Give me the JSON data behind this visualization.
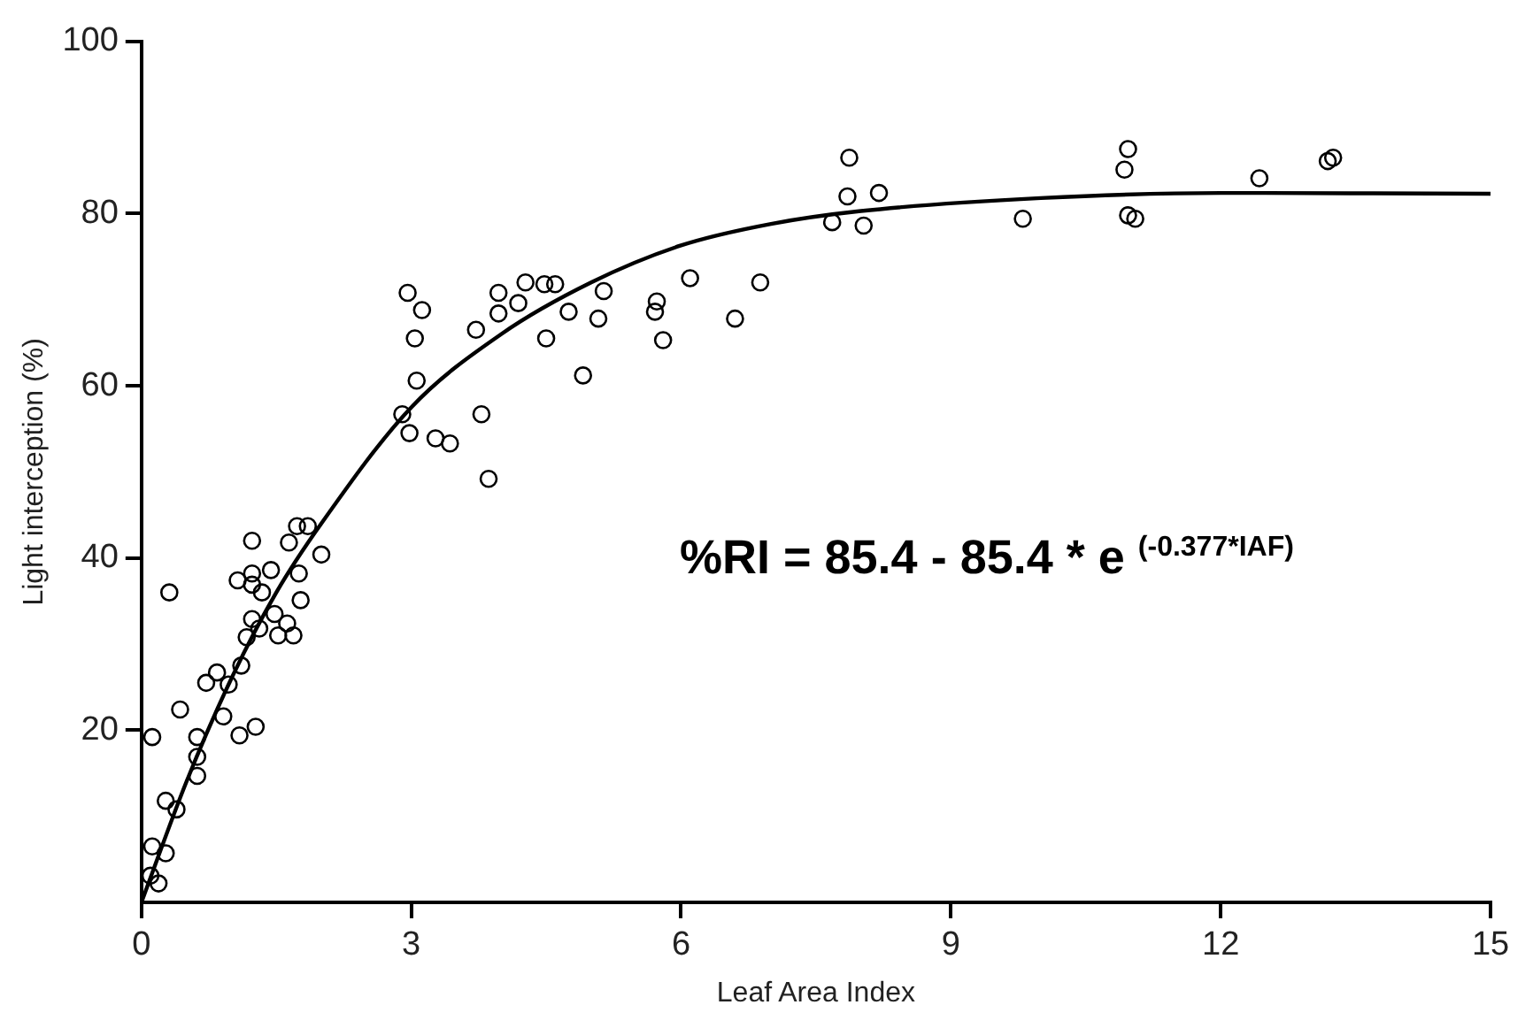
{
  "chart_data": {
    "type": "scatter",
    "xlabel": "Leaf Area Index",
    "ylabel": "Light interception (%)",
    "xlim": [
      0,
      15
    ],
    "xticks": [
      0,
      3,
      6,
      9,
      12,
      15
    ],
    "ylim": [
      0,
      100
    ],
    "yticks": [
      20,
      40,
      60,
      80,
      100
    ],
    "grid": false,
    "legend": false,
    "annotations": [
      "%RI = 85.4 - 85.4 * e $^{(-0.377*IAF)}$"
    ],
    "series": [
      {
        "type": "scatter",
        "color": "#000000",
        "marker": "circle",
        "x": [
          0.12,
          0.31,
          0.43,
          0.27,
          0.39,
          0.12,
          0.27,
          0.1,
          0.19,
          0.62,
          0.62,
          0.62,
          0.91,
          1.09,
          1.27,
          0.72,
          0.84,
          0.97,
          1.11,
          1.17,
          1.31,
          1.52,
          1.69,
          1.23,
          1.48,
          1.62,
          1.77,
          1.23,
          1.07,
          1.34,
          1.75,
          1.44,
          1.23,
          1.23,
          1.64,
          2.0,
          1.73,
          1.85,
          2.96,
          3.12,
          3.04,
          3.06,
          2.9,
          2.98,
          3.27,
          3.43,
          3.78,
          3.86,
          3.72,
          3.97,
          3.97,
          4.19,
          4.27,
          4.48,
          4.6,
          4.5,
          4.75,
          4.91,
          5.08,
          5.14,
          5.73,
          5.71,
          5.8,
          6.1,
          6.6,
          6.88,
          7.87,
          7.85,
          8.2,
          7.68,
          8.03,
          9.8,
          10.97,
          10.93,
          10.97,
          11.05,
          12.43,
          13.19,
          13.25
        ],
        "values": [
          19.2,
          36,
          22.4,
          11.8,
          10.8,
          6.5,
          5.7,
          3.1,
          2.2,
          19.2,
          16.9,
          14.7,
          21.6,
          19.4,
          20.4,
          25.5,
          26.7,
          25.3,
          27.5,
          30.8,
          31.8,
          31,
          31,
          32.9,
          33.5,
          32.4,
          35.1,
          36.9,
          37.4,
          36,
          38.2,
          38.6,
          38.2,
          42,
          41.8,
          40.4,
          43.7,
          43.7,
          70.8,
          68.8,
          65.5,
          60.6,
          56.7,
          54.5,
          53.9,
          53.3,
          56.7,
          49.2,
          66.5,
          70.8,
          68.4,
          69.6,
          72,
          71.8,
          71.8,
          65.5,
          68.6,
          61.2,
          67.8,
          71,
          69.8,
          68.6,
          65.3,
          72.5,
          67.8,
          72,
          86.5,
          82,
          82.4,
          79,
          78.6,
          79.4,
          87.5,
          85.1,
          79.8,
          79.4,
          84.1,
          86.1,
          86.5
        ]
      },
      {
        "type": "line",
        "color": "#000000",
        "marker": "none",
        "line_style": "solid",
        "x": [
          0,
          0.5,
          1,
          1.5,
          2,
          3,
          4,
          5,
          6,
          7,
          8,
          10,
          12,
          15
        ],
        "values": [
          0,
          14,
          26,
          36,
          44,
          57.5,
          66,
          72,
          76.3,
          78.8,
          80.3,
          81.8,
          82.4,
          82.3
        ]
      }
    ]
  }
}
